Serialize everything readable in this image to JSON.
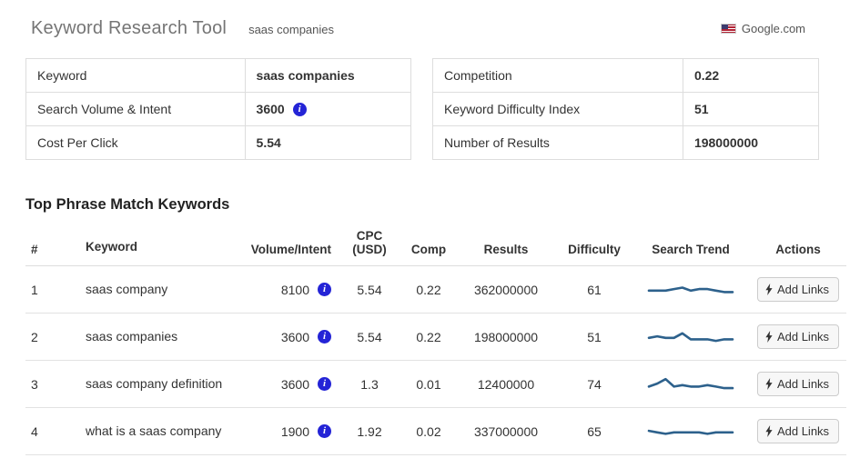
{
  "header": {
    "title": "Keyword Research Tool",
    "query": "saas companies",
    "region_label": "Google.com"
  },
  "icons": {
    "info_glyph": "i"
  },
  "summary_left": {
    "rows": [
      {
        "label": "Keyword",
        "value": "saas companies"
      },
      {
        "label": "Search Volume & Intent",
        "value": "3600"
      },
      {
        "label": "Cost Per Click",
        "value": "5.54"
      }
    ]
  },
  "summary_right": {
    "rows": [
      {
        "label": "Competition",
        "value": "0.22"
      },
      {
        "label": "Keyword Difficulty Index",
        "value": "51"
      },
      {
        "label": "Number of Results",
        "value": "198000000"
      }
    ]
  },
  "keywords_section": {
    "heading": "Top Phrase Match Keywords",
    "columns": [
      "#",
      "Keyword",
      "Volume/Intent",
      "CPC (USD)",
      "Comp",
      "Results",
      "Difficulty",
      "Search Trend",
      "Actions"
    ],
    "add_links_label": "Add Links",
    "rows": [
      {
        "num": "1",
        "keyword": "saas company",
        "volume": "8100",
        "cpc": "5.54",
        "comp": "0.22",
        "results": "362000000",
        "difficulty": "61",
        "trend": [
          5,
          5,
          5,
          6,
          7,
          5,
          6,
          6,
          5,
          4,
          4
        ]
      },
      {
        "num": "2",
        "keyword": "saas companies",
        "volume": "3600",
        "cpc": "5.54",
        "comp": "0.22",
        "results": "198000000",
        "difficulty": "51",
        "trend": [
          5,
          6,
          5,
          5,
          8,
          4,
          4,
          4,
          3,
          4,
          4
        ]
      },
      {
        "num": "3",
        "keyword": "saas company definition",
        "volume": "3600",
        "cpc": "1.3",
        "comp": "0.01",
        "results": "12400000",
        "difficulty": "74",
        "trend": [
          4,
          6,
          9,
          4,
          5,
          4,
          4,
          5,
          4,
          3,
          3
        ]
      },
      {
        "num": "4",
        "keyword": "what is a saas company",
        "volume": "1900",
        "cpc": "1.92",
        "comp": "0.02",
        "results": "337000000",
        "difficulty": "65",
        "trend": [
          6,
          5,
          4,
          5,
          5,
          5,
          5,
          4,
          5,
          5,
          5
        ]
      }
    ]
  },
  "colors": {
    "info_blue": "#2424d6",
    "sparkline_blue": "#2d618c"
  }
}
